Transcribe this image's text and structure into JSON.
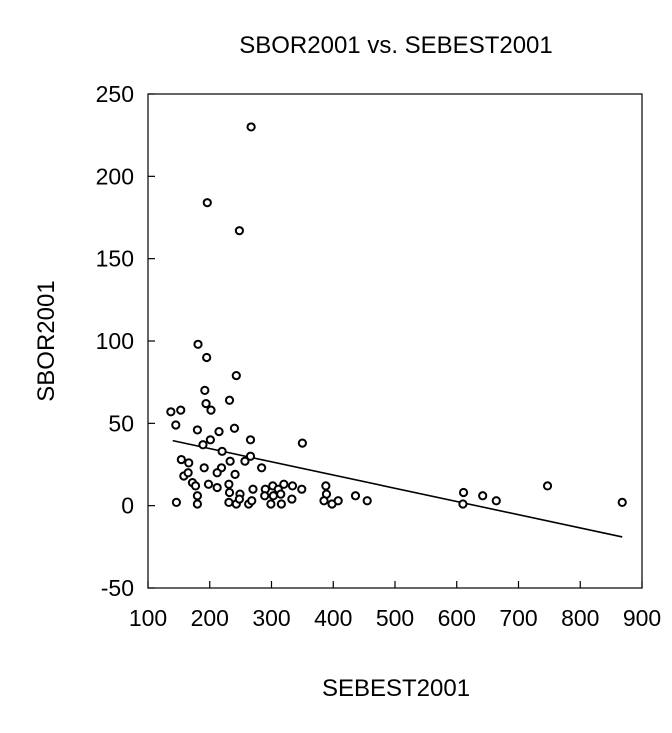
{
  "chart_data": {
    "type": "scatter",
    "title": "SBOR2001 vs. SEBEST2001",
    "xlabel": "SEBEST2001",
    "ylabel": "SBOR2001",
    "xlim": [
      100,
      900
    ],
    "ylim": [
      -50,
      250
    ],
    "x_ticks": [
      100,
      200,
      300,
      400,
      500,
      600,
      700,
      800,
      900
    ],
    "y_ticks": [
      -50,
      0,
      50,
      100,
      150,
      200,
      250
    ],
    "x_tick_labels": [
      "100",
      "200",
      "300",
      "400",
      "500",
      "600",
      "700",
      "800",
      "900"
    ],
    "y_tick_labels": [
      "-50",
      "0",
      "50",
      "100",
      "150",
      "200",
      "250"
    ],
    "grid": false,
    "legend": "none",
    "points": [
      [
        267,
        230
      ],
      [
        196,
        184
      ],
      [
        248,
        167
      ],
      [
        181,
        98
      ],
      [
        195,
        90
      ],
      [
        243,
        79
      ],
      [
        192,
        70
      ],
      [
        194,
        62
      ],
      [
        232,
        64
      ],
      [
        202,
        58
      ],
      [
        137,
        57
      ],
      [
        153,
        58
      ],
      [
        145,
        49
      ],
      [
        180,
        46
      ],
      [
        215,
        45
      ],
      [
        240,
        47
      ],
      [
        201,
        40
      ],
      [
        266,
        40
      ],
      [
        189,
        37
      ],
      [
        350,
        38
      ],
      [
        220,
        33
      ],
      [
        154,
        28
      ],
      [
        166,
        26
      ],
      [
        233,
        27
      ],
      [
        257,
        27
      ],
      [
        266,
        30
      ],
      [
        191,
        23
      ],
      [
        219,
        23
      ],
      [
        284,
        23
      ],
      [
        158,
        18
      ],
      [
        165,
        20
      ],
      [
        212,
        20
      ],
      [
        241,
        19
      ],
      [
        172,
        14
      ],
      [
        177,
        12
      ],
      [
        198,
        13
      ],
      [
        212,
        11
      ],
      [
        231,
        13
      ],
      [
        270,
        10
      ],
      [
        290,
        10
      ],
      [
        302,
        12
      ],
      [
        311,
        10
      ],
      [
        320,
        13
      ],
      [
        334,
        12
      ],
      [
        349,
        10
      ],
      [
        388,
        12
      ],
      [
        180,
        6
      ],
      [
        232,
        8
      ],
      [
        249,
        7
      ],
      [
        289,
        6
      ],
      [
        303,
        6
      ],
      [
        315,
        7
      ],
      [
        389,
        7
      ],
      [
        146,
        2
      ],
      [
        180,
        1
      ],
      [
        231,
        2
      ],
      [
        243,
        1
      ],
      [
        248,
        4
      ],
      [
        263,
        1
      ],
      [
        268,
        3
      ],
      [
        299,
        1
      ],
      [
        316,
        1
      ],
      [
        333,
        4
      ],
      [
        385,
        3
      ],
      [
        398,
        1
      ],
      [
        408,
        3
      ],
      [
        436,
        6
      ],
      [
        455,
        3
      ],
      [
        610,
        1
      ],
      [
        611,
        8
      ],
      [
        642,
        6
      ],
      [
        664,
        3
      ],
      [
        747,
        12
      ],
      [
        868,
        2
      ]
    ],
    "fit_line": {
      "x": [
        140,
        868
      ],
      "y": [
        39.5,
        -19
      ]
    }
  }
}
